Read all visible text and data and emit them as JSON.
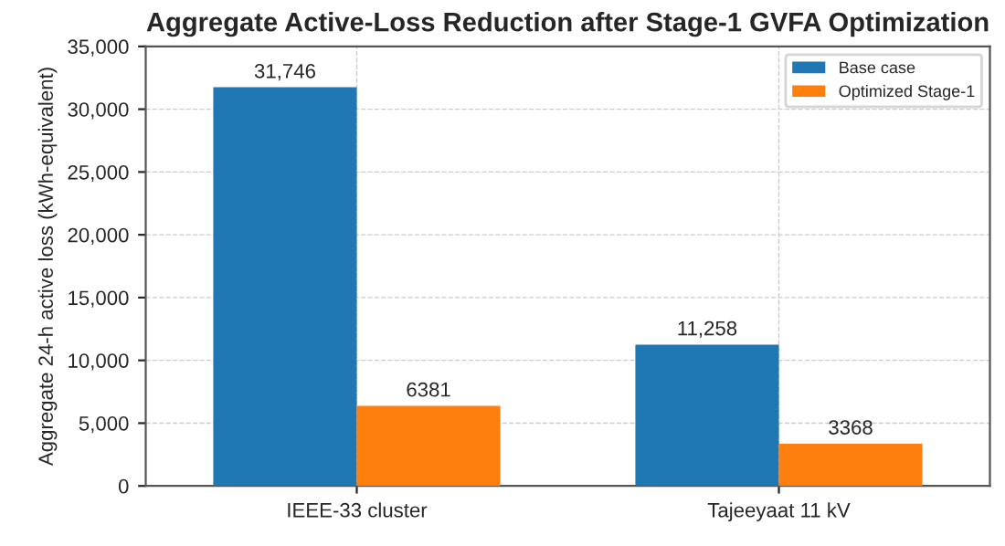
{
  "chart_data": {
    "type": "bar",
    "title": "Aggregate Active-Loss Reduction after Stage-1 GVFA Optimization",
    "ylabel": "Aggregate 24-h active loss (kWh-equivalent)",
    "categories": [
      "IEEE-33 cluster",
      "Tajeeyaat 11 kV"
    ],
    "series": [
      {
        "name": "Base case",
        "color": "#1f77b4",
        "values": [
          31746,
          11258
        ],
        "value_labels": [
          "31,746",
          "11,258"
        ]
      },
      {
        "name": "Optimized Stage-1",
        "color": "#ff7f0e",
        "values": [
          6381,
          3368
        ],
        "value_labels": [
          "6381",
          "3368"
        ]
      }
    ],
    "ylim": [
      0,
      35000
    ],
    "yticks": [
      {
        "value": 0,
        "label": "0"
      },
      {
        "value": 5000,
        "label": "5,000"
      },
      {
        "value": 10000,
        "label": "10,000"
      },
      {
        "value": 15000,
        "label": "15,000"
      },
      {
        "value": 20000,
        "label": "20,000"
      },
      {
        "value": 25000,
        "label": "25,000"
      },
      {
        "value": 30000,
        "label": "30,000"
      },
      {
        "value": 35000,
        "label": "35,000"
      }
    ],
    "grid": true,
    "legend": "upper right"
  }
}
